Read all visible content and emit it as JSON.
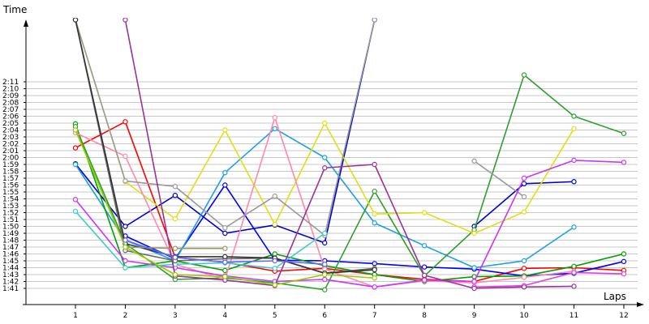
{
  "chart_data": {
    "type": "line",
    "xlabel": "Laps",
    "ylabel": "Time",
    "x": [
      1,
      2,
      3,
      4,
      5,
      6,
      7,
      8,
      9,
      10,
      11,
      12
    ],
    "x_tick_labels": [
      "1",
      "2",
      "3",
      "4",
      "5",
      "6",
      "7",
      "8",
      "9",
      "10",
      "11",
      "12"
    ],
    "ylim_seconds": [
      97,
      137
    ],
    "y_tick_labels": [
      "1:41",
      "1:42",
      "1:43",
      "1:44",
      "1:45",
      "1:46",
      "1:47",
      "1:48",
      "1:49",
      "1:50",
      "1:51",
      "1:52",
      "1:53",
      "1:54",
      "1:55",
      "1:56",
      "1:57",
      "1:58",
      "1:59",
      "2:00",
      "2:01",
      "2:02",
      "2:03",
      "2:04",
      "2:05",
      "2:06",
      "2:07",
      "2:08",
      "2:09",
      "2:10",
      "2:11"
    ],
    "grid": "horizontal",
    "series": [
      {
        "color": "#ff0000",
        "values": [
          "2:01.4",
          "2:05.2",
          "1:45.5",
          "1:44.8",
          "1:43.5",
          "1:43.9",
          "1:43.0",
          "1:42.3",
          "1:42.0",
          "1:43.9",
          "1:44.0",
          "1:43.6"
        ]
      },
      {
        "color": "#0000cc",
        "values": [
          "1:59.1",
          "1:50.0",
          "1:54.5",
          "1:49.0",
          "1:50.2",
          "1:47.6",
          "2:20.0",
          null,
          "1:50.0",
          "1:56.2",
          "1:56.5",
          null
        ]
      },
      {
        "color": "#0000ff",
        "values": [
          null,
          "1:48.6",
          "1:45.3",
          "1:56.0",
          "1:45.1",
          "1:45.0",
          "1:44.6",
          "1:44.1",
          "1:43.8",
          "1:42.8",
          "1:43.2",
          "1:44.9"
        ]
      },
      {
        "color": "#1a9fe8",
        "values": [
          "1:59.0",
          "1:48.0",
          "1:45.0",
          "1:57.8",
          "2:04.2",
          "2:00.0",
          "1:50.5",
          "1:47.2",
          "1:44.0",
          "1:45.0",
          "1:49.9",
          null
        ]
      },
      {
        "color": "#00a000",
        "values": [
          "2:04.9",
          "1:44.0",
          "1:45.0",
          "1:43.6",
          "1:46.0",
          "1:44.3",
          "1:43.0",
          "1:42.0",
          "1:42.7",
          "1:42.8",
          "1:44.2",
          "1:46.0"
        ]
      },
      {
        "color": "#2ca02c",
        "values": [
          "2:04.5",
          "1:47.5",
          "1:42.3",
          "1:42.5",
          "1:41.8",
          "1:40.8",
          "1:55.1",
          "1:42.8",
          "1:49.5",
          "2:12.0",
          "2:06.0",
          "2:03.5"
        ]
      },
      {
        "color": "#e0e010",
        "values": [
          "2:20.0",
          "1:56.5",
          "1:51.1",
          "2:04.0",
          "1:50.3",
          "2:05.0",
          "1:51.8",
          "1:52.0",
          "1:49.0",
          "1:52.1",
          "2:04.2",
          null
        ]
      },
      {
        "color": "#ff88aa",
        "values": [
          "2:03.6",
          "2:00.2",
          "1:44.5",
          "1:42.3",
          "2:05.8",
          "1:43.8",
          "1:41.2",
          "1:42.1",
          "1:41.8",
          "1:42.6",
          "1:43.5",
          null
        ]
      },
      {
        "color": "#999999",
        "values": [
          "2:20.0",
          "1:56.6",
          "1:55.8",
          "1:49.8",
          "1:54.4",
          "1:48.7",
          "2:20.0",
          null,
          "1:59.5",
          "1:54.3",
          null,
          null
        ]
      },
      {
        "color": "#cc33ff",
        "values": [
          "1:53.9",
          "1:45.0",
          "1:44.0",
          "1:42.8",
          "1:42.0",
          "1:42.3",
          "1:41.2",
          "1:42.2",
          "1:42.0",
          "1:57.0",
          "1:59.6",
          "1:59.3"
        ]
      },
      {
        "color": "#dd44dd",
        "values": [
          null,
          null,
          null,
          null,
          null,
          null,
          null,
          null,
          "1:41.2",
          "1:41.4",
          "1:43.3",
          "1:43.1"
        ]
      },
      {
        "color": "#40cccc",
        "values": [
          "1:52.2",
          "1:44.0",
          "1:44.5",
          "1:44.7",
          "1:43.9",
          "1:49.0",
          null,
          null,
          null,
          null,
          null,
          null
        ]
      },
      {
        "color": "#993399",
        "values": [
          null,
          "2:20.0",
          "1:42.8",
          "1:42.2",
          "1:41.4",
          "1:58.5",
          "1:59.0",
          "1:42.9",
          "1:41.0",
          "1:41.2",
          "1:41.3",
          null
        ]
      },
      {
        "color": "#666666",
        "values": [
          "2:20.0",
          "1:46.5",
          "1:45.0",
          "1:45.3",
          "1:45.4",
          "1:43.2",
          "1:43.9",
          null,
          null,
          null,
          null,
          null
        ]
      },
      {
        "color": "#333333",
        "values": [
          "2:20.0",
          "1:47.5",
          "1:45.6",
          "1:45.6",
          "1:45.4",
          "1:43.2",
          "1:43.7",
          null,
          null,
          null,
          null,
          null
        ]
      },
      {
        "color": "#999966",
        "values": [
          null,
          "1:47.0",
          "1:46.8",
          "1:46.8",
          null,
          null,
          null,
          null,
          null,
          null,
          null,
          null
        ]
      },
      {
        "color": "#99cc00",
        "values": [
          "2:04.0",
          "1:47.0",
          "1:43.0",
          "1:42.7",
          "1:41.5",
          "1:43.0",
          "1:42.5",
          null,
          null,
          null,
          null,
          null
        ]
      },
      {
        "color": "#6666ff",
        "values": [
          null,
          "1:48.0",
          "1:45.5",
          "1:44.8",
          "1:45.0",
          "1:44.5",
          null,
          null,
          null,
          null,
          null,
          null
        ]
      }
    ]
  }
}
